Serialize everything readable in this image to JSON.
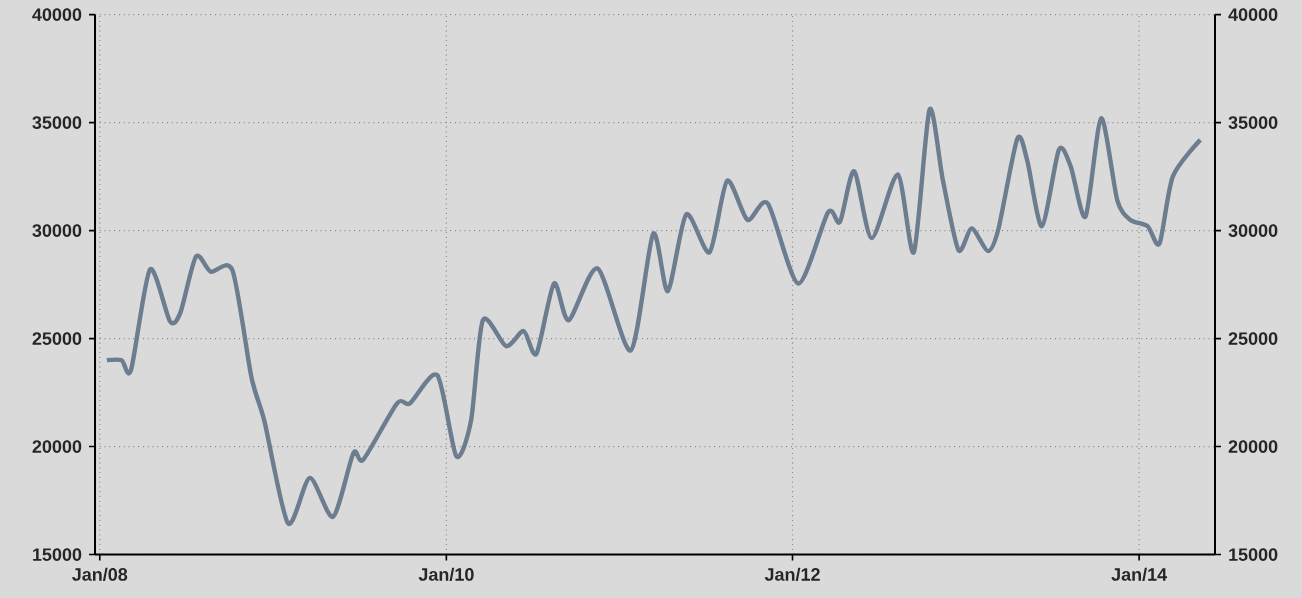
{
  "chart_data": {
    "type": "line",
    "x": [
      "2008-01-16",
      "2008-02-16",
      "2008-03-07",
      "2008-04-16",
      "2008-05-28",
      "2008-06-19",
      "2008-07-22",
      "2008-08-22",
      "2008-10-07",
      "2008-11-16",
      "2008-12-13",
      "2009-02-01",
      "2009-03-19",
      "2009-05-07",
      "2009-06-19",
      "2009-07-10",
      "2009-09-19",
      "2009-10-16",
      "2009-12-13",
      "2010-01-22",
      "2010-02-22",
      "2010-03-19",
      "2010-05-07",
      "2010-06-13",
      "2010-07-10",
      "2010-08-16",
      "2010-09-16",
      "2010-11-16",
      "2011-01-25",
      "2011-03-13",
      "2011-04-13",
      "2011-05-22",
      "2011-07-10",
      "2011-08-16",
      "2011-09-28",
      "2011-11-10",
      "2012-01-13",
      "2012-03-16",
      "2012-04-10",
      "2012-05-10",
      "2012-06-16",
      "2012-08-10",
      "2012-09-13",
      "2012-10-16",
      "2012-11-13",
      "2012-12-16",
      "2013-01-13",
      "2013-02-16",
      "2013-03-10",
      "2013-04-19",
      "2013-05-10",
      "2013-06-10",
      "2013-07-16",
      "2013-08-10",
      "2013-09-10",
      "2013-10-13",
      "2013-11-16",
      "2013-12-13",
      "2014-01-19",
      "2014-02-13",
      "2014-03-13",
      "2014-05-10"
    ],
    "series": [
      {
        "color": "#6d7d90",
        "values": [
          24000,
          24000,
          23550,
          28200,
          25800,
          26200,
          28800,
          28100,
          28150,
          23200,
          21200,
          16450,
          18550,
          16750,
          19700,
          19400,
          22000,
          22000,
          23300,
          19550,
          21200,
          25850,
          24650,
          25350,
          24300,
          27550,
          25850,
          28250,
          24450,
          29850,
          27200,
          30750,
          29000,
          32300,
          30500,
          31250,
          27550,
          30850,
          30400,
          32750,
          29650,
          32600,
          29000,
          35600,
          32350,
          29100,
          30100,
          29050,
          30050,
          34250,
          33250,
          30200,
          33750,
          32950,
          30650,
          35200,
          31400,
          30500,
          30200,
          29400,
          32500,
          34200
        ]
      }
    ],
    "xlim": [
      "2007-12-22",
      "2014-06-10"
    ],
    "xticks": [
      {
        "value": "2008-01-01",
        "label": "Jan/08"
      },
      {
        "value": "2010-01-01",
        "label": "Jan/10"
      },
      {
        "value": "2012-01-01",
        "label": "Jan/12"
      },
      {
        "value": "2014-01-01",
        "label": "Jan/14"
      }
    ],
    "ylim": [
      15000,
      40000
    ],
    "yticks": [
      15000,
      20000,
      25000,
      30000,
      35000,
      40000
    ],
    "y2lim": [
      15000,
      40000
    ],
    "y2ticks": [
      15000,
      20000,
      25000,
      30000,
      35000,
      40000
    ],
    "grid": true,
    "marker": "none",
    "line_style": "solid"
  }
}
